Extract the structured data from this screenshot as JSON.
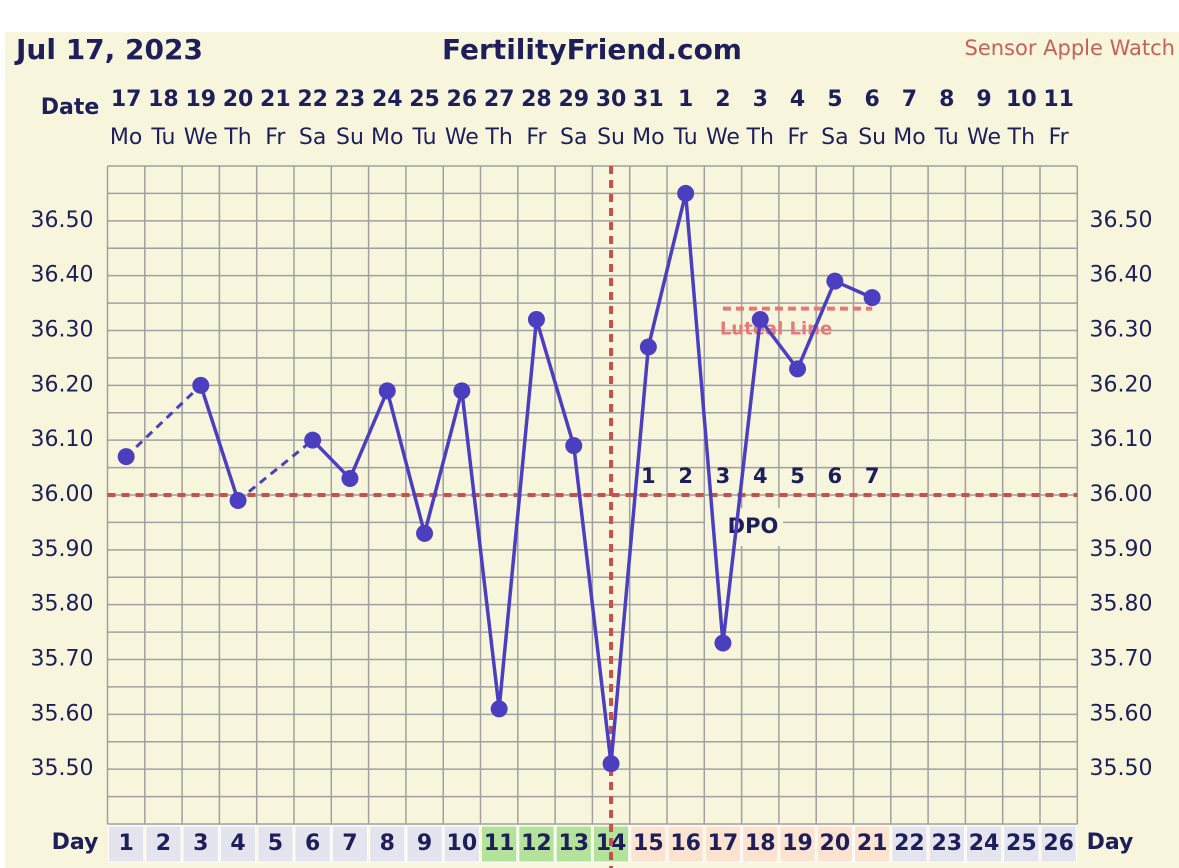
{
  "header": {
    "date": "Jul 17, 2023",
    "site": "FertilityFriend.com",
    "sensor": "Sensor Apple Watch"
  },
  "chart_data": {
    "type": "line",
    "date_label": "Date",
    "day_label": "Day",
    "dates": [
      "17",
      "18",
      "19",
      "20",
      "21",
      "22",
      "23",
      "24",
      "25",
      "26",
      "27",
      "28",
      "29",
      "30",
      "31",
      "1",
      "2",
      "3",
      "4",
      "5",
      "6",
      "7",
      "8",
      "9",
      "10",
      "11"
    ],
    "weekdays": [
      "Mo",
      "Tu",
      "We",
      "Th",
      "Fr",
      "Sa",
      "Su",
      "Mo",
      "Tu",
      "We",
      "Th",
      "Fr",
      "Sa",
      "Su",
      "Mo",
      "Tu",
      "We",
      "Th",
      "Fr",
      "Sa",
      "Su",
      "Mo",
      "Tu",
      "We",
      "Th",
      "Fr"
    ],
    "days": [
      1,
      2,
      3,
      4,
      5,
      6,
      7,
      8,
      9,
      10,
      11,
      12,
      13,
      14,
      15,
      16,
      17,
      18,
      19,
      20,
      21,
      22,
      23,
      24,
      25,
      26
    ],
    "day_colors": [
      "#e4e4ee",
      "#e4e4ee",
      "#e4e4ee",
      "#e4e4ee",
      "#e4e4ee",
      "#e4e4ee",
      "#e4e4ee",
      "#e4e4ee",
      "#e4e4ee",
      "#e4e4ee",
      "#b3e29b",
      "#b3e29b",
      "#b3e29b",
      "#b3e29b",
      "#fbe3cf",
      "#fbe3cf",
      "#fbe3cf",
      "#fbe3cf",
      "#fbe3cf",
      "#fbe3cf",
      "#fbe3cf",
      "#e4e4ee",
      "#e4e4ee",
      "#e4e4ee",
      "#e4e4ee",
      "#e4e4ee"
    ],
    "series": [
      {
        "color": "#4b3fc0",
        "values": [
          36.07,
          null,
          36.2,
          35.99,
          null,
          36.1,
          36.03,
          36.19,
          35.93,
          36.19,
          35.61,
          36.32,
          36.09,
          35.51,
          36.27,
          36.55,
          35.73,
          36.32,
          36.23,
          36.39,
          36.36,
          null,
          null,
          null,
          null,
          null
        ]
      }
    ],
    "ylim": [
      35.4,
      36.6
    ],
    "yticks": [
      {
        "value": 35.5,
        "label": "35.50"
      },
      {
        "value": 35.6,
        "label": "35.60"
      },
      {
        "value": 35.7,
        "label": "35.70"
      },
      {
        "value": 35.8,
        "label": "35.80"
      },
      {
        "value": 35.9,
        "label": "35.90"
      },
      {
        "value": 36.0,
        "label": "36.00"
      },
      {
        "value": 36.1,
        "label": "36.10"
      },
      {
        "value": 36.2,
        "label": "36.20"
      },
      {
        "value": 36.3,
        "label": "36.30"
      },
      {
        "value": 36.4,
        "label": "36.40"
      },
      {
        "value": 36.5,
        "label": "36.50"
      }
    ],
    "grid": true,
    "coverline": 36.0,
    "coverline_color": "#c8504a",
    "ovulation_day": 14,
    "luteal_line": {
      "label": "Luteal Line",
      "value": 36.34,
      "start_day": 17,
      "end_day": 21,
      "color": "#e87878"
    },
    "dpo": {
      "label": "DPO",
      "values": [
        1,
        2,
        3,
        4,
        5,
        6,
        7
      ],
      "start_day": 15
    }
  }
}
